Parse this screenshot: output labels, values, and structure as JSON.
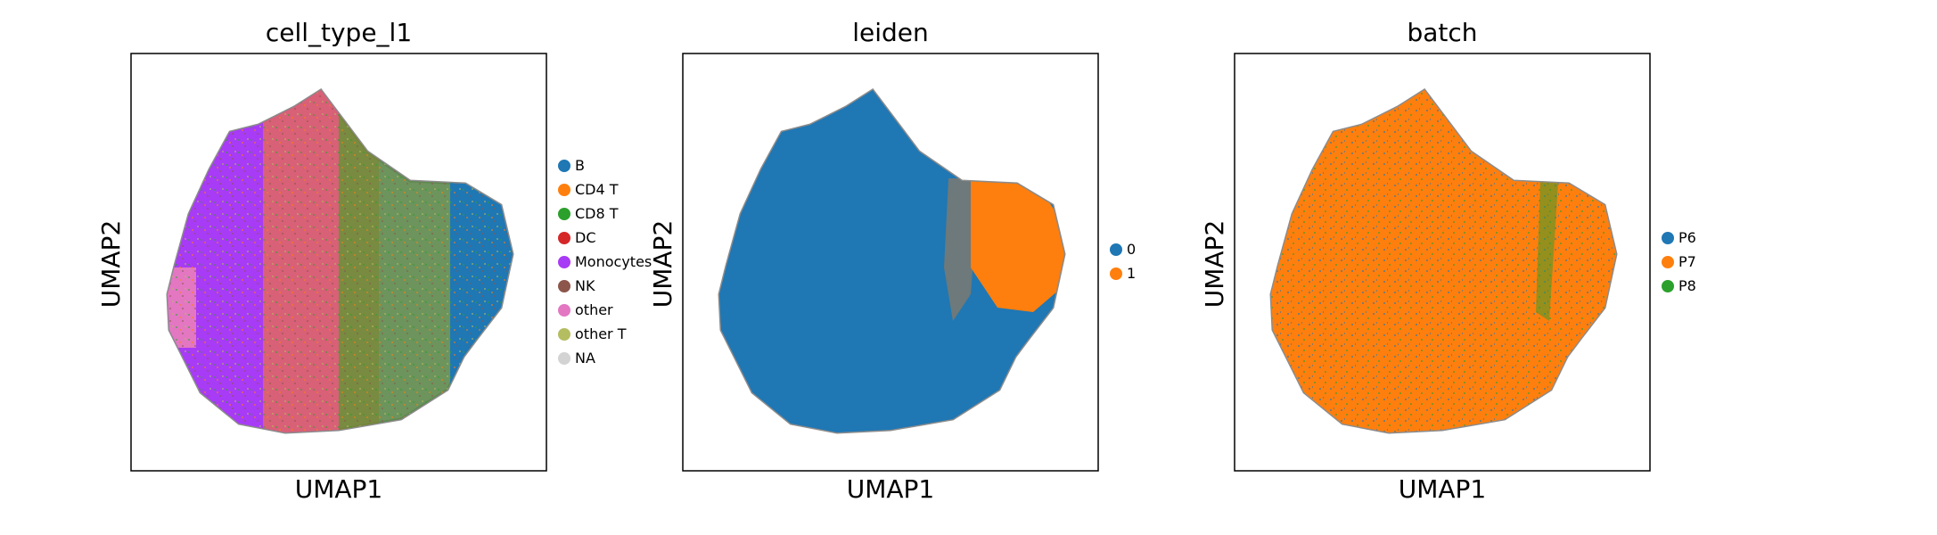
{
  "chart_data": [
    {
      "type": "scatter",
      "title": "cell_type_l1",
      "xlabel": "UMAP1",
      "ylabel": "UMAP2",
      "legend": {
        "placement": "right-outside",
        "entries": [
          {
            "label": "B",
            "color": "#1f77b4"
          },
          {
            "label": "CD4 T",
            "color": "#ff7f0e"
          },
          {
            "label": "CD8 T",
            "color": "#2ca02c"
          },
          {
            "label": "DC",
            "color": "#d62728"
          },
          {
            "label": "Monocytes",
            "color": "#a83bf5"
          },
          {
            "label": "NK",
            "color": "#8c564b"
          },
          {
            "label": "other",
            "color": "#e377c2"
          },
          {
            "label": "other T",
            "color": "#b5bd61"
          },
          {
            "label": "NA",
            "color": "#d3d3d3"
          }
        ]
      }
    },
    {
      "type": "scatter",
      "title": "leiden",
      "xlabel": "UMAP1",
      "ylabel": "UMAP2",
      "legend": {
        "placement": "right-outside",
        "entries": [
          {
            "label": "0",
            "color": "#1f77b4"
          },
          {
            "label": "1",
            "color": "#ff7f0e"
          }
        ]
      }
    },
    {
      "type": "scatter",
      "title": "batch",
      "xlabel": "UMAP1",
      "ylabel": "UMAP2",
      "legend": {
        "placement": "right-outside",
        "entries": [
          {
            "label": "P6",
            "color": "#1f77b4"
          },
          {
            "label": "P7",
            "color": "#ff7f0e"
          },
          {
            "label": "P8",
            "color": "#2ca02c"
          }
        ]
      }
    }
  ],
  "colors": {
    "edges": "#8c8c8c",
    "frame": "#000000"
  }
}
